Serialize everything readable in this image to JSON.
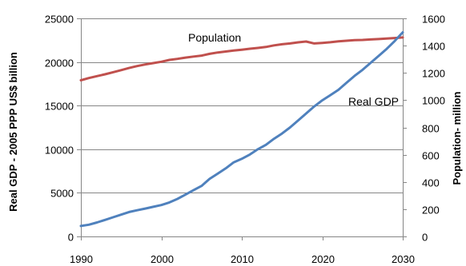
{
  "chart_data": {
    "type": "line",
    "title": "",
    "xlabel": "",
    "ylabel_left": "Real GDP - 2005 PPP US$ billion",
    "ylabel_right": "Population- million",
    "xlim": [
      1990,
      2030
    ],
    "ylim_left": [
      0,
      25000
    ],
    "ylim_right": [
      0,
      1600
    ],
    "x_ticks": [
      1990,
      2000,
      2010,
      2020,
      2030
    ],
    "y_ticks_left": [
      0,
      5000,
      10000,
      15000,
      20000,
      25000
    ],
    "y_ticks_right": [
      0,
      200,
      400,
      600,
      800,
      1000,
      1200,
      1400,
      1600
    ],
    "grid": "horizontal",
    "legend": "none",
    "series": [
      {
        "name": "Population",
        "axis": "right",
        "color": "#C0504D",
        "x": [
          1990,
          1991,
          1992,
          1993,
          1994,
          1995,
          1996,
          1997,
          1998,
          1999,
          2000,
          2001,
          2002,
          2003,
          2004,
          2005,
          2006,
          2007,
          2008,
          2009,
          2010,
          2011,
          2012,
          2013,
          2014,
          2015,
          2016,
          2017,
          2018,
          2019,
          2020,
          2021,
          2022,
          2023,
          2024,
          2025,
          2026,
          2027,
          2028,
          2029,
          2030
        ],
        "values": [
          1146,
          1162,
          1176,
          1190,
          1205,
          1220,
          1236,
          1250,
          1262,
          1272,
          1282,
          1295,
          1303,
          1312,
          1320,
          1327,
          1340,
          1350,
          1357,
          1364,
          1370,
          1377,
          1383,
          1390,
          1402,
          1410,
          1416,
          1424,
          1430,
          1416,
          1420,
          1425,
          1432,
          1436,
          1440,
          1442,
          1445,
          1448,
          1452,
          1456,
          1460
        ]
      },
      {
        "name": "Real GDP",
        "axis": "left",
        "color": "#4F81BD",
        "x": [
          1990,
          1991,
          1992,
          1993,
          1994,
          1995,
          1996,
          1997,
          1998,
          1999,
          2000,
          2001,
          2002,
          2003,
          2004,
          2005,
          2006,
          2007,
          2008,
          2009,
          2010,
          2011,
          2012,
          2013,
          2014,
          2015,
          2016,
          2017,
          2018,
          2019,
          2020,
          2021,
          2022,
          2023,
          2024,
          2025,
          2026,
          2027,
          2028,
          2029,
          2030
        ],
        "values": [
          1200,
          1350,
          1600,
          1900,
          2200,
          2500,
          2800,
          3000,
          3200,
          3400,
          3600,
          3900,
          4300,
          4800,
          5300,
          5800,
          6600,
          7200,
          7800,
          8500,
          8900,
          9400,
          10000,
          10500,
          11200,
          11800,
          12500,
          13300,
          14100,
          14900,
          15600,
          16200,
          16800,
          17600,
          18400,
          19100,
          19900,
          20700,
          21500,
          22400,
          23400
        ]
      }
    ],
    "annotations": [
      {
        "text": "Population",
        "series": "Population"
      },
      {
        "text": "Real GDP",
        "series": "Real GDP"
      }
    ]
  }
}
